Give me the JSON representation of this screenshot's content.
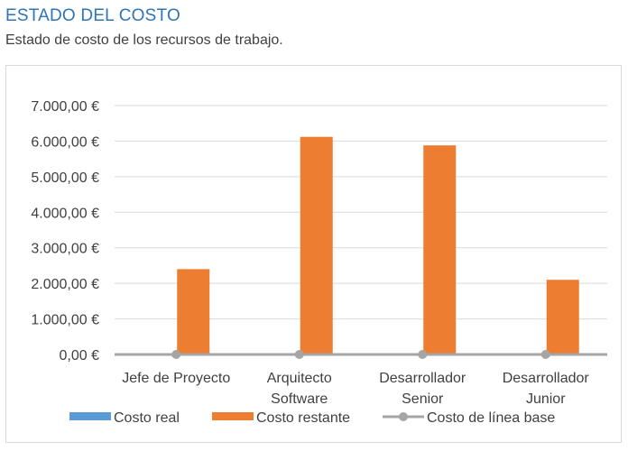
{
  "header": {
    "title": "ESTADO DEL COSTO",
    "subtitle": "Estado de costo de los recursos de trabajo."
  },
  "colors": {
    "title": "#2E75B6",
    "costo_real": "#5B9BD5",
    "costo_restante": "#ED7D31",
    "costo_linea_base": "#A5A5A5",
    "gridline": "#D9D9D9",
    "text": "#404040"
  },
  "chart_data": {
    "type": "bar",
    "categories": [
      [
        "Jefe de Proyecto"
      ],
      [
        "Arquitecto",
        "Software"
      ],
      [
        "Desarrollador",
        "Senior"
      ],
      [
        "Desarrollador",
        "Junior"
      ]
    ],
    "series": [
      {
        "name": "Costo real",
        "type": "bar",
        "values": [
          0,
          0,
          0,
          0
        ]
      },
      {
        "name": "Costo restante",
        "type": "bar",
        "values": [
          2400,
          6120,
          5880,
          2100
        ]
      },
      {
        "name": "Costo de línea base",
        "type": "line",
        "values": [
          0,
          0,
          0,
          0
        ]
      }
    ],
    "ylim": [
      0,
      7000
    ],
    "yticks": [
      0,
      1000,
      2000,
      3000,
      4000,
      5000,
      6000,
      7000
    ],
    "ytick_labels": [
      "0,00 €",
      "1.000,00 €",
      "2.000,00 €",
      "3.000,00 €",
      "4.000,00 €",
      "5.000,00 €",
      "6.000,00 €",
      "7.000,00 €"
    ],
    "grid": true,
    "legend_position": "bottom"
  }
}
